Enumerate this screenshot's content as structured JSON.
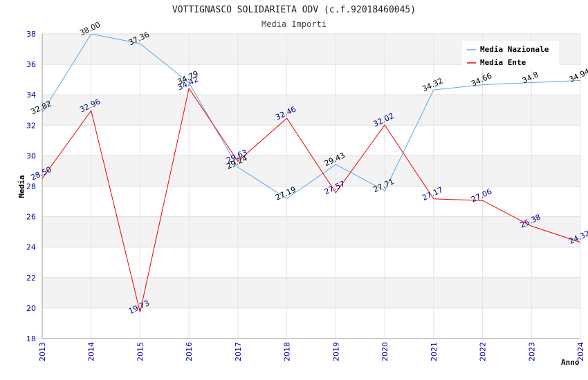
{
  "chart_data": {
    "type": "line",
    "title": "VOTTIGNASCO SOLIDARIETA ODV (c.f.92018460045)",
    "subtitle": "Media Importi",
    "xlabel": "Anno",
    "ylabel": "Media",
    "ylim": [
      18,
      38
    ],
    "yticks": [
      "18",
      "20",
      "22",
      "24",
      "26",
      "28",
      "30",
      "32",
      "34",
      "36",
      "38"
    ],
    "categories": [
      "2013",
      "2014",
      "2015",
      "2016",
      "2017",
      "2018",
      "2019",
      "2020",
      "2021",
      "2022",
      "2023",
      "2024"
    ],
    "series": [
      {
        "name": "Media Nazionale",
        "color": "#5ea6e6",
        "label_color": "#000000",
        "values": [
          32.82,
          38.0,
          37.36,
          34.79,
          29.24,
          27.19,
          29.43,
          27.71,
          34.32,
          34.66,
          34.8,
          34.94
        ],
        "labels": [
          "32.82",
          "38.00",
          "37.36",
          "34.79",
          "29.24",
          "27.19",
          "29.43",
          "27.71",
          "34.32",
          "34.66",
          "34.8",
          "34.94"
        ]
      },
      {
        "name": "Media Ente",
        "color": "#ee0000",
        "label_color": "#00008b",
        "values": [
          28.5,
          32.96,
          19.73,
          34.42,
          29.63,
          32.46,
          27.57,
          32.02,
          27.17,
          27.06,
          25.38,
          24.32
        ],
        "labels": [
          "28.50",
          "32.96",
          "19.73",
          "34.42",
          "29.63",
          "32.46",
          "27.57",
          "32.02",
          "27.17",
          "27.06",
          "25.38",
          "24.32"
        ]
      }
    ],
    "legend_position": "top-right",
    "grid": true
  }
}
